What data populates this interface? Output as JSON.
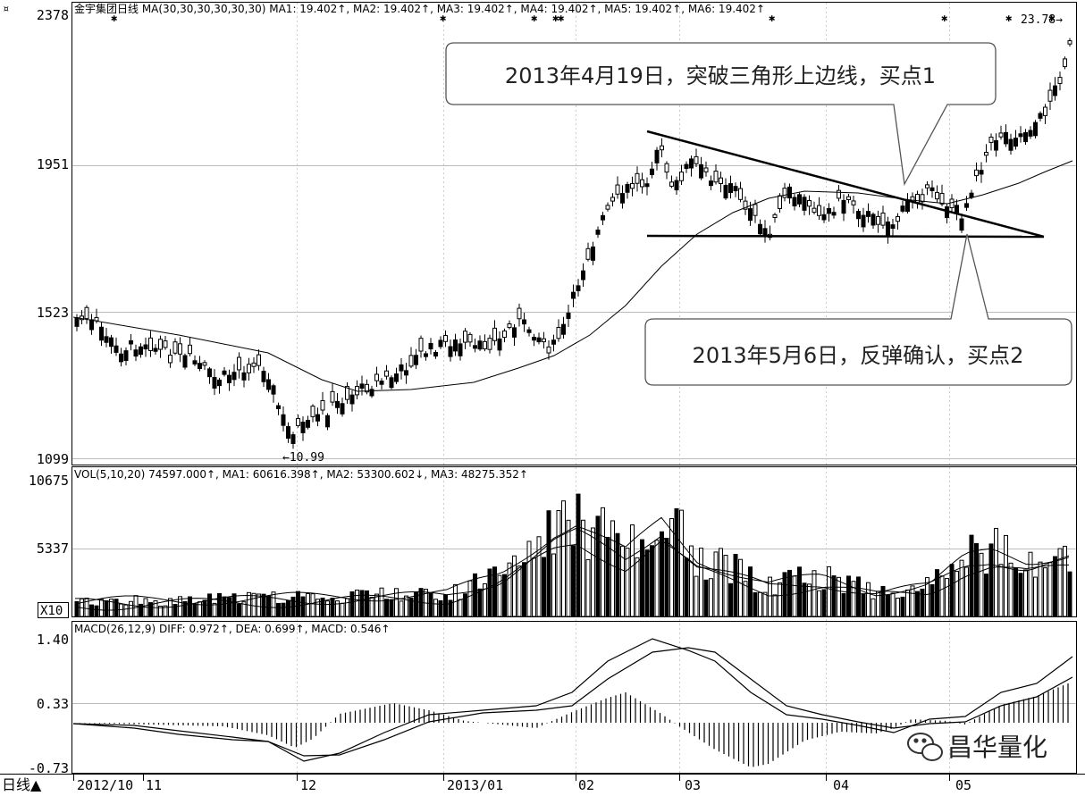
{
  "corner_icon": "currency-icon",
  "price_panel": {
    "header": "金宇集团日线 MA(30,30,30,30,30,30) MA1: 19.402↑, MA2: 19.402↑, MA3: 19.402↑, MA4: 19.402↑, MA5: 19.402↑, MA6: 19.402↑",
    "y_ticks": [
      "2378",
      "1951",
      "1523",
      "1099"
    ],
    "low_label": "←10.99",
    "high_label": "23.78→",
    "annotation_buy1": "2013年4月19日，突破三角形上边线，买点1",
    "annotation_buy2": "2013年5月6日，反弹确认，买点2"
  },
  "volume_panel": {
    "header": "VOL(5,10,20) 74597.000↑, MA1: 60616.398↑, MA2: 53300.602↓, MA3: 48275.352↑",
    "y_ticks": [
      "10675",
      "5337"
    ],
    "scale_badge": "X10"
  },
  "macd_panel": {
    "header": "MACD(26,12,9) DIFF: 0.972↑, DEA: 0.699↑, MACD: 0.546↑",
    "y_ticks": [
      "1.40",
      "0.33",
      "-0.73"
    ]
  },
  "x_axis": {
    "period_label": "日线▲",
    "labels": [
      "2012/10",
      "11",
      "12",
      "2013/01",
      "02",
      "03",
      "04",
      "05"
    ]
  },
  "watermark": {
    "icon": "wechat-icon",
    "text": "昌华量化"
  },
  "chart_data": {
    "type": "candlestick",
    "series": [
      {
        "name": "MA1",
        "role": "moving-average"
      },
      {
        "name": "VOL"
      },
      {
        "name": "DIFF"
      },
      {
        "name": "DEA"
      },
      {
        "name": "MACD",
        "role": "histogram"
      }
    ],
    "x_range": [
      "2012/10",
      "2013/05"
    ],
    "price_axis_ticks": [
      "2378",
      "1951",
      "1523",
      "1099"
    ],
    "key_points": [
      {
        "label": "10.99",
        "type": "low",
        "date": "2012/12"
      },
      {
        "label": "23.78",
        "type": "high",
        "date": "2013/05"
      }
    ],
    "annotations": [
      "2013年4月19日，突破三角形上边线，买点1",
      "2013年5月6日，反弹确认，买点2"
    ],
    "volume_axis_ticks": [
      "10675",
      "5337"
    ],
    "macd_axis_ticks": [
      "1.40",
      "0.33",
      "-0.73"
    ]
  }
}
